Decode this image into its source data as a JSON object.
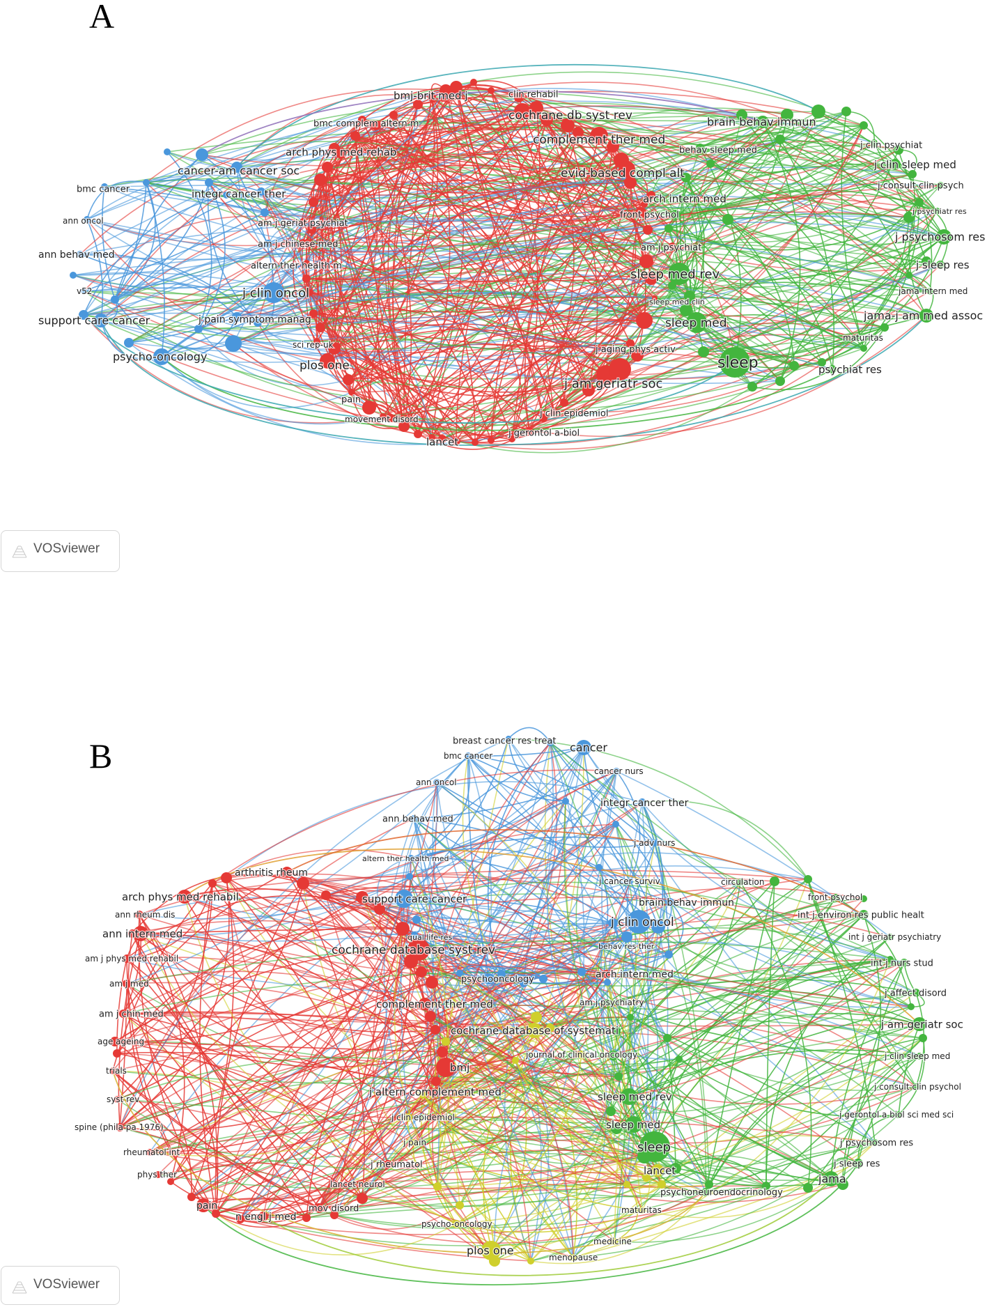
{
  "panels": [
    {
      "letter": "A",
      "badge": "VOSviewer"
    },
    {
      "letter": "B",
      "badge": "VOSviewer"
    }
  ],
  "colors": {
    "red": "#e53935",
    "blue": "#4a97dc",
    "green": "#43b53e",
    "yellow": "#cfcf2c"
  },
  "network_A": {
    "clusters": {
      "red": [
        "bmj-brit med j",
        "clin rehabil",
        "cochrane db syst rev",
        "bmc complem altern m",
        "complement ther med",
        "arch phys med rehab",
        "evid-based compl alt",
        "arch intern med",
        "front psychol",
        "am j psychiat",
        "sleep med clin",
        "j aging phys activ",
        "j am geriatr soc",
        "j clin epidemiol",
        "j gerontol a-biol",
        "lancet",
        "movement disord",
        "pain",
        "plos one",
        "sci rep-uk",
        "am j geriat psychiat",
        "am j chinese med",
        "altern ther health m"
      ],
      "blue": [
        "cancer-am cancer soc",
        "integr cancer ther",
        "bmc cancer",
        "ann oncol",
        "ann behav med",
        "v52",
        "j clin oncol",
        "support care cancer",
        "psycho-oncology",
        "j pain symptom manag"
      ],
      "green": [
        "brain behav immun",
        "behav sleep med",
        "j clin psychiat",
        "j clin sleep med",
        "j consult clin psych",
        "j psychiatr res",
        "j psychosom res",
        "j sleep res",
        "jama intern med",
        "jama-j am med assoc",
        "maturitas",
        "psychiat res",
        "sleep",
        "sleep med",
        "sleep med rev"
      ]
    }
  },
  "network_B": {
    "clusters": {
      "blue": [
        "breast cancer res treat",
        "cancer",
        "bmc cancer",
        "cancer nurs",
        "ann oncol",
        "integr cancer ther",
        "ann behav med",
        "j adv nurs",
        "altern ther health med",
        "j cancer surviv",
        "support care cancer",
        "j clin oncol",
        "qual life res",
        "behav res ther",
        "psychooncology",
        "brain behav immun"
      ],
      "red": [
        "arthritis rheum",
        "arch phys med rehabil",
        "ann rheum dis",
        "ann intern med",
        "cochrane database syst rev",
        "am j phys med rehabil",
        "am j med",
        "am j chin med",
        "age ageing",
        "trials",
        "syst rev",
        "spine (phila pa 1976)",
        "rheumatol int",
        "phys ther",
        "pain",
        "n engl j med",
        "mov disord",
        "lancet neurol",
        "j rheumatol",
        "j altern complement med",
        "complement ther med",
        "bmj",
        "j clin epidemiol",
        "arch intern med"
      ],
      "green": [
        "circulation",
        "front psychol",
        "int j environ res public healt",
        "int j geriatr psychiatry",
        "int j nurs stud",
        "j affect disord",
        "j am geriatr soc",
        "j clin sleep med",
        "j consult clin psychol",
        "j gerontol a biol sci med sci",
        "j psychosom res",
        "j sleep res",
        "jama",
        "sleep",
        "sleep med",
        "sleep med rev",
        "psychoneuroendocrinology",
        "am j psychiatry"
      ],
      "yellow": [
        "cochrane database of systemati",
        "journal of clinical oncology",
        "j pain",
        "lancet",
        "maturitas",
        "medicine",
        "menopause",
        "plos one",
        "psycho-oncology"
      ]
    }
  }
}
